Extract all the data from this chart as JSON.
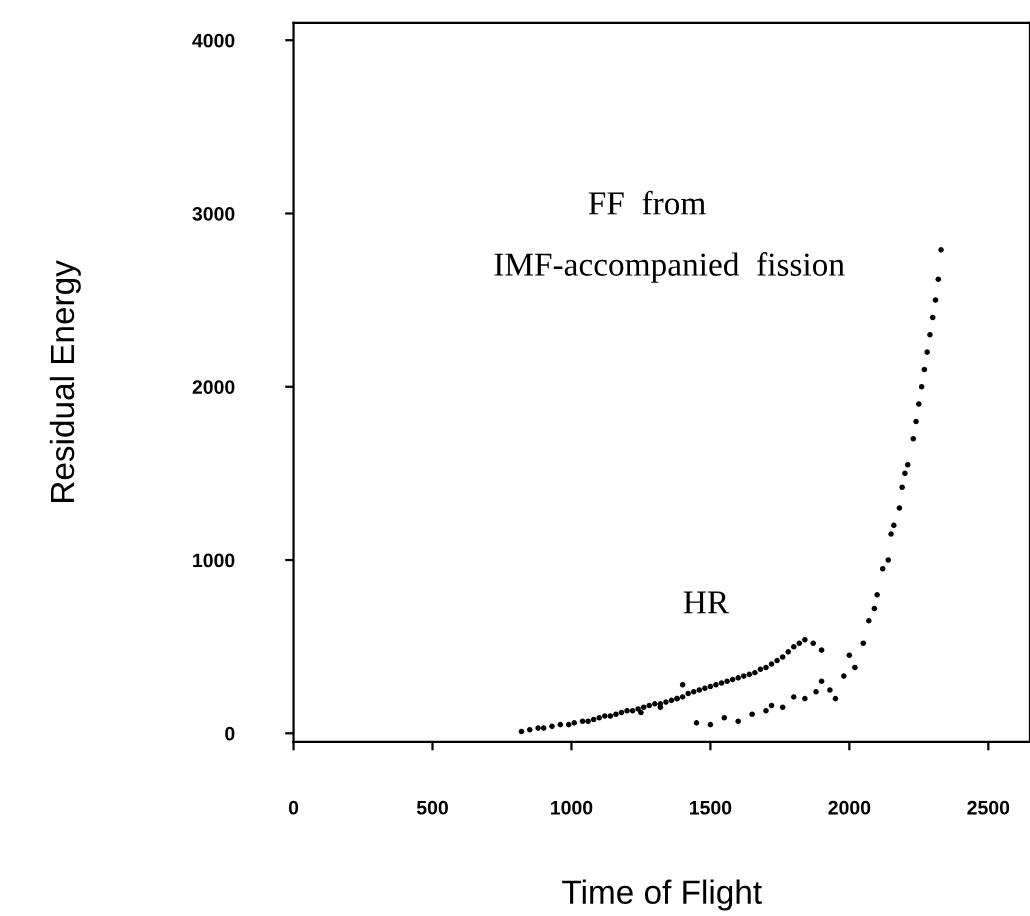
{
  "chart_data": {
    "type": "scatter",
    "xlabel": "Time of Flight",
    "ylabel": "Residual Energy",
    "xlim": [
      0,
      2650
    ],
    "ylim": [
      -50,
      4100
    ],
    "xticks": [
      0,
      500,
      1000,
      1500,
      2000,
      2500
    ],
    "yticks": [
      0,
      1000,
      2000,
      3000,
      4000
    ],
    "grid": false,
    "annotations": [
      "FF  from",
      "IMF-accompanied  fission",
      "HR"
    ],
    "series": [
      {
        "color": "#000000",
        "x": [
          820,
          850,
          880,
          900,
          930,
          960,
          990,
          1010,
          1040,
          1060,
          1080,
          1100,
          1120,
          1140,
          1160,
          1180,
          1200,
          1220,
          1240,
          1260,
          1280,
          1300,
          1320,
          1340,
          1360,
          1380,
          1400,
          1420,
          1440,
          1460,
          1480,
          1500,
          1520,
          1540,
          1560,
          1580,
          1600,
          1620,
          1640,
          1660,
          1680,
          1700,
          1720,
          1740,
          1760,
          1780,
          1800,
          1820,
          1840,
          1870,
          1900,
          1250,
          1320,
          1380,
          1400,
          1450,
          1500,
          1550,
          1600,
          1650,
          1700,
          1720,
          1760,
          1800,
          1840,
          1880,
          1900,
          1930,
          1950,
          1980,
          2000,
          2020,
          2050,
          2070,
          2090,
          2100,
          2120,
          2140,
          2150,
          2160,
          2180,
          2190,
          2200,
          2210,
          2230,
          2240,
          2250,
          2260,
          2270,
          2280,
          2290,
          2300,
          2310,
          2320,
          2330
        ],
        "values": [
          10,
          20,
          30,
          30,
          40,
          50,
          50,
          60,
          70,
          70,
          80,
          90,
          100,
          100,
          110,
          120,
          130,
          130,
          140,
          150,
          160,
          170,
          170,
          180,
          190,
          200,
          210,
          230,
          240,
          250,
          260,
          270,
          280,
          290,
          300,
          310,
          320,
          330,
          340,
          350,
          370,
          380,
          400,
          420,
          440,
          470,
          500,
          520,
          540,
          520,
          480,
          120,
          150,
          200,
          280,
          60,
          50,
          90,
          70,
          110,
          130,
          160,
          150,
          210,
          200,
          240,
          300,
          250,
          200,
          330,
          450,
          380,
          520,
          650,
          720,
          800,
          950,
          1000,
          1150,
          1200,
          1300,
          1420,
          1500,
          1550,
          1700,
          1800,
          1900,
          2000,
          2100,
          2200,
          2300,
          2400,
          2500,
          2620,
          2790
        ]
      }
    ]
  }
}
